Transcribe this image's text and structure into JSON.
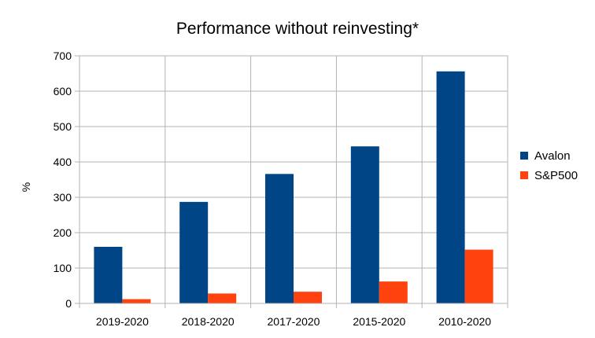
{
  "chart_data": {
    "type": "bar",
    "title": "Performance without reinvesting*",
    "xlabel": "",
    "ylabel": "%",
    "categories": [
      "2019-2020",
      "2018-2020",
      "2017-2020",
      "2015-2020",
      "2010-2020"
    ],
    "series": [
      {
        "name": "Avalon",
        "values": [
          160,
          287,
          366,
          444,
          656
        ],
        "color": "#004586"
      },
      {
        "name": "S&P500",
        "values": [
          12,
          28,
          33,
          62,
          152
        ],
        "color": "#ff420e"
      }
    ],
    "ylim": [
      0,
      700
    ],
    "yticks": [
      "0",
      "100",
      "200",
      "300",
      "400",
      "500",
      "600",
      "700"
    ],
    "grid": true,
    "legend_position": "right"
  }
}
